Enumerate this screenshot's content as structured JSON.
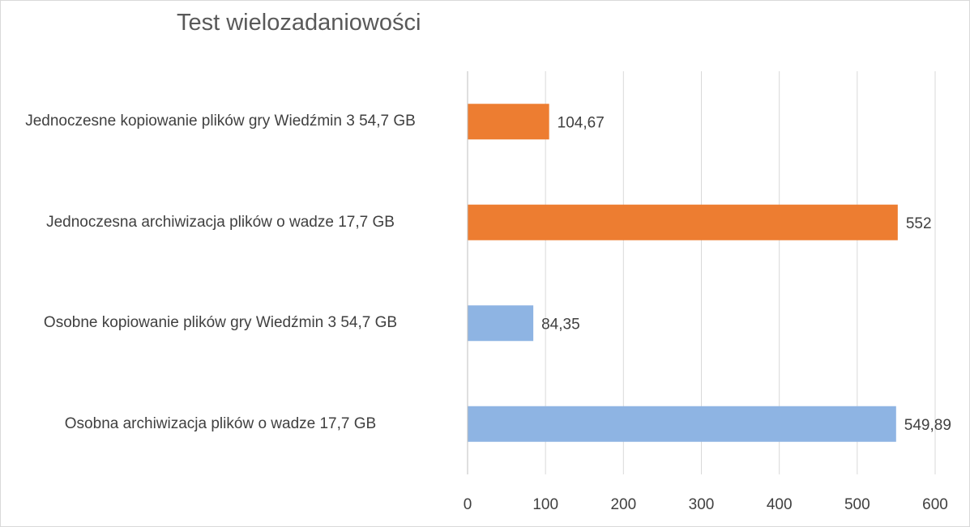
{
  "chart_data": {
    "type": "bar",
    "orientation": "horizontal",
    "title": "Test wielozadaniowości",
    "xlabel": "",
    "ylabel": "",
    "xlim": [
      0,
      600
    ],
    "x_ticks": [
      0,
      100,
      200,
      300,
      400,
      500,
      600
    ],
    "grid": "vertical",
    "legend": "none",
    "categories": [
      "Jednoczesne kopiowanie plików gry Wiedźmin 3 54,7 GB",
      "Jednoczesna archiwizacja plików o wadze 17,7 GB",
      "Osobne kopiowanie plików gry Wiedźmin 3 54,7 GB",
      "Osobna archiwizacja plików o wadze 17,7 GB"
    ],
    "values": [
      104.67,
      552,
      84.35,
      549.89
    ],
    "data_labels": [
      "104,67",
      "552",
      "84,35",
      "549,89"
    ],
    "bar_colors": [
      "#ed7d31",
      "#ed7d31",
      "#8eb4e3",
      "#8eb4e3"
    ]
  }
}
